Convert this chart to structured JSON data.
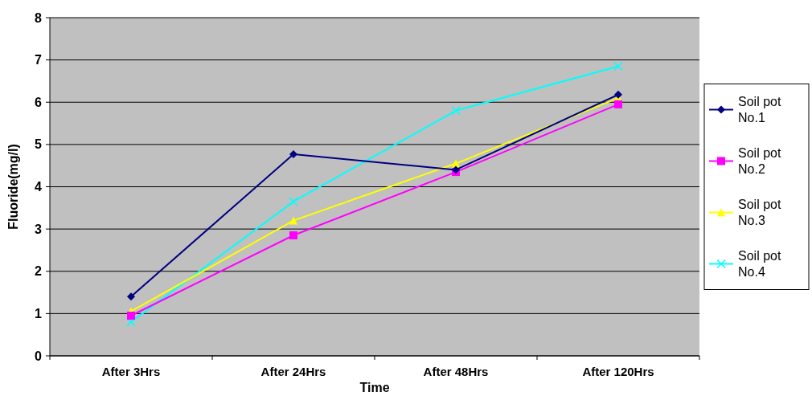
{
  "chart_data": {
    "type": "line",
    "xlabel": "Time",
    "ylabel": "Fluoride(mg/l)",
    "categories": [
      "After 3Hrs",
      "After 24Hrs",
      "After 48Hrs",
      "After 120Hrs"
    ],
    "ylim": [
      0,
      8
    ],
    "yticks": [
      0,
      1,
      2,
      3,
      4,
      5,
      6,
      7,
      8
    ],
    "grid": "y",
    "legend": "right",
    "series": [
      {
        "name": "Soil pot No.1",
        "color": "#000080",
        "marker": "diamond",
        "values": [
          1.4,
          4.77,
          4.4,
          6.18
        ]
      },
      {
        "name": "Soil pot No.2",
        "color": "#ff00ff",
        "marker": "square",
        "values": [
          0.95,
          2.85,
          4.35,
          5.95
        ]
      },
      {
        "name": "Soil pot No.3",
        "color": "#ffff00",
        "marker": "triangle",
        "values": [
          1.05,
          3.2,
          4.55,
          6.1
        ]
      },
      {
        "name": "Soil pot No.4",
        "color": "#00ffff",
        "marker": "cross",
        "values": [
          0.8,
          3.65,
          5.8,
          6.85
        ]
      }
    ]
  }
}
